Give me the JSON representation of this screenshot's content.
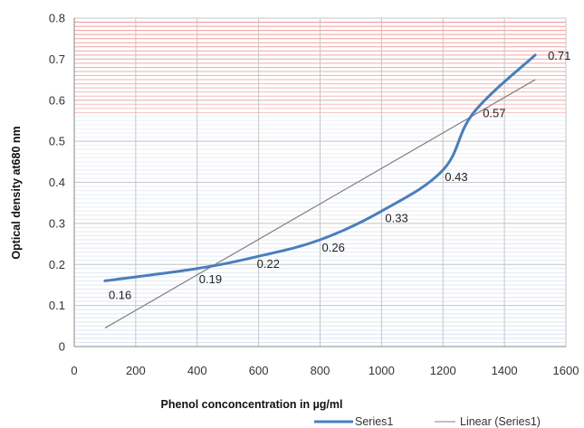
{
  "chart_data": {
    "type": "line",
    "xlabel": "Phenol conconcentration in µg/ml",
    "ylabel": "Optical density at680 nm",
    "xlim": [
      0,
      1600
    ],
    "ylim": [
      0,
      0.8
    ],
    "x_ticks": [
      "0",
      "200",
      "400",
      "600",
      "800",
      "1000",
      "1200",
      "1400",
      "1600"
    ],
    "y_ticks": [
      "0",
      "0.1",
      "0.2",
      "0.3",
      "0.4",
      "0.5",
      "0.6",
      "0.7",
      "0.8"
    ],
    "grid": true,
    "legend_position": "bottom-right",
    "series": [
      {
        "name": "Series1",
        "style": "smooth-line",
        "color": "#4a7ebb",
        "x": [
          100,
          400,
          600,
          800,
          1000,
          1200,
          1300,
          1500
        ],
        "y": [
          0.16,
          0.19,
          0.22,
          0.26,
          0.33,
          0.43,
          0.57,
          0.71
        ],
        "labels": [
          "0.16",
          "0.19",
          "0.22",
          "0.26",
          "0.33",
          "0.43",
          "0.57",
          "0.71"
        ]
      },
      {
        "name": "Linear (Series1)",
        "style": "trendline",
        "color": "#7f7f7f",
        "x": [
          100,
          1500
        ],
        "y": [
          0.045,
          0.65
        ]
      }
    ],
    "background_bands": {
      "red": "#f08080",
      "blue": "#b8c8e8"
    }
  }
}
